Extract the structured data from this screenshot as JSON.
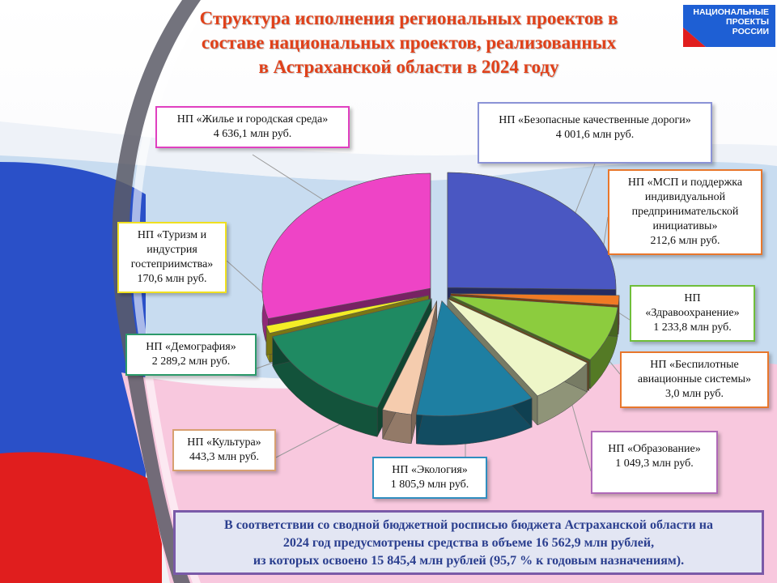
{
  "title": {
    "line1": "Структура исполнения региональных проектов в",
    "line2": "составе национальных проектов, реализованных",
    "line3": "в Астраханской области в 2024 году"
  },
  "logo": {
    "line1": "НАЦИОНАЛЬНЫЕ",
    "line2": "ПРОЕКТЫ",
    "line3": "РОССИИ",
    "color": "#1e5fd4"
  },
  "chart_data": {
    "type": "pie",
    "title": "Структура исполнения региональных проектов в составе национальных проектов, реализованных в Астраханской области в 2024 году",
    "unit": "млн руб.",
    "slices": [
      {
        "name": "НП «Безопасные качественные дороги»",
        "value": 4001.6,
        "value_label": "4 001,6 млн руб.",
        "color": "#4a57c2",
        "border": "#8b93d6"
      },
      {
        "name": "НП «МСП и поддержка индивидуальной предпринимательской инициативы»",
        "value": 212.6,
        "value_label": "212,6 млн руб.",
        "color": "#f07a24",
        "border": "#e8772c"
      },
      {
        "name": "НП «Здравоохранение»",
        "value": 1233.8,
        "value_label": "1 233,8 млн руб.",
        "color": "#8ccc3e",
        "border": "#6fbe3a"
      },
      {
        "name": "НП «Беспилотные авиационные системы»",
        "value": 3.0,
        "value_label": "3,0 млн руб.",
        "color": "#d8902a",
        "border": "#e8772c"
      },
      {
        "name": "НП «Образование»",
        "value": 1049.3,
        "value_label": "1 049,3 млн руб.",
        "color": "#eef6c8",
        "border": "#b06ab8"
      },
      {
        "name": "НП «Экология»",
        "value": 1805.9,
        "value_label": "1 805,9 млн руб.",
        "color": "#1e7fa2",
        "border": "#2f8ec0"
      },
      {
        "name": "НП «Культура»",
        "value": 443.3,
        "value_label": "443,3 млн руб.",
        "color": "#f5ccae",
        "border": "#d8a070"
      },
      {
        "name": "НП «Демография»",
        "value": 2289.2,
        "value_label": "2 289,2 млн руб.",
        "color": "#1f8a62",
        "border": "#2c9a6a"
      },
      {
        "name": "НП «Туризм и индустрия гостеприимства»",
        "value": 170.6,
        "value_label": "170,6 млн руб.",
        "color": "#f4ec26",
        "border": "#f0e020"
      },
      {
        "name": "НП «Жилье и городская среда»",
        "value": 4636.1,
        "value_label": "4 636,1 млн руб.",
        "color": "#ee44c6",
        "border": "#e040c0"
      }
    ]
  },
  "callouts": {
    "housing": {
      "lines": [
        "НП «Жилье и городская среда»"
      ],
      "value": "4 636,1 млн руб."
    },
    "roads": {
      "lines": [
        "НП «Безопасные качественные дороги»"
      ],
      "value": "4 001,6 млн руб."
    },
    "msp": {
      "lines": [
        "НП «МСП и поддержка",
        "индивидуальной",
        "предпринимательской",
        "инициативы»"
      ],
      "value": "212,6 млн руб."
    },
    "tourism": {
      "lines": [
        "НП «Туризм и",
        "индустрия",
        "гостеприимства»"
      ],
      "value": "170,6 млн руб."
    },
    "health": {
      "lines": [
        "НП «Здравоохранение»"
      ],
      "value": "1 233,8 млн руб."
    },
    "demography": {
      "lines": [
        "НП «Демография»"
      ],
      "value": "2 289,2 млн руб."
    },
    "drones": {
      "lines": [
        "НП «Беспилотные",
        "авиационные системы»"
      ],
      "value": "3,0 млн руб."
    },
    "culture": {
      "lines": [
        "НП «Культура»"
      ],
      "value": "443,3 млн руб."
    },
    "education": {
      "lines": [
        "НП «Образование»"
      ],
      "value": "1 049,3 млн руб."
    },
    "ecology": {
      "lines": [
        "НП «Экология»"
      ],
      "value": "1 805,9 млн руб."
    }
  },
  "note": {
    "line1": "В соответствии со сводной бюджетной росписью бюджета Астраханской области на",
    "line2": "2024 год предусмотрены средства в объеме 16 562,9 млн рублей,",
    "line3": "из которых освоено 15 845,4 млн рублей (95,7 % к годовым назначениям)."
  }
}
